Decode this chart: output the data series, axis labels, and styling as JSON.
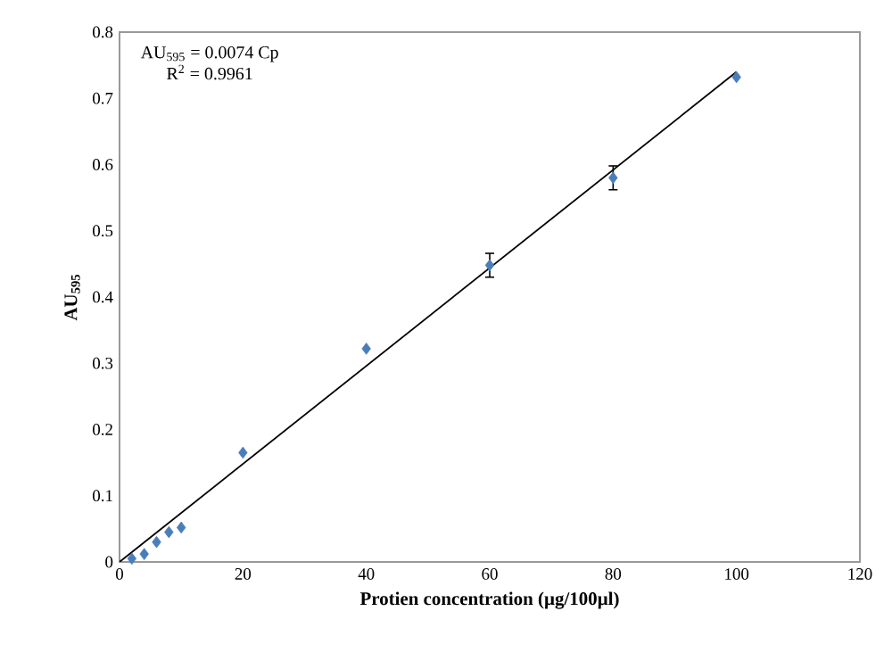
{
  "chart_data": {
    "type": "scatter",
    "xlabel": "Protien concentration (µg/100µl)",
    "ylabel": "AU$_{595}$",
    "series": [
      {
        "color": "#4a7ebb",
        "marker": "diamond",
        "x": [
          2,
          4,
          6,
          8,
          10,
          20,
          40,
          60,
          80,
          100
        ],
        "values": [
          0.005,
          0.012,
          0.03,
          0.045,
          0.052,
          0.165,
          0.322,
          0.448,
          0.58,
          0.732
        ],
        "errors": [
          null,
          null,
          null,
          null,
          null,
          null,
          null,
          0.018,
          0.018,
          null
        ]
      },
      {
        "type": "line",
        "color": "#000000",
        "x": [
          0,
          100
        ],
        "values": [
          0,
          0.74
        ]
      }
    ],
    "annotations": [
      "AU$_{595}$ = 0.0074 Cp",
      "R$^{2}$ = 0.9961"
    ],
    "xlim": [
      0,
      120
    ],
    "ylim": [
      0,
      0.8
    ],
    "xticks": [
      0,
      20,
      40,
      60,
      80,
      100,
      120
    ],
    "yticks": [
      0,
      0.1,
      0.2,
      0.3,
      0.4,
      0.5,
      0.6,
      0.7,
      0.8
    ],
    "grid": false
  }
}
